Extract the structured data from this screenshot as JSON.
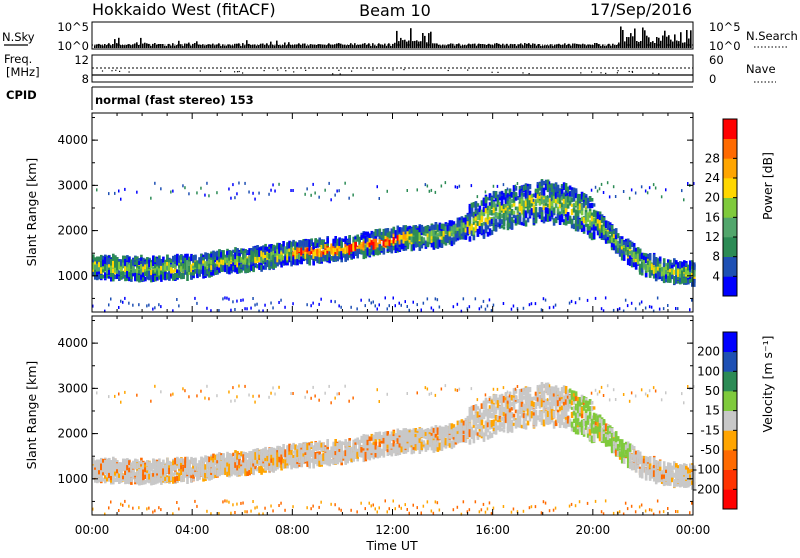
{
  "header": {
    "title": "Hokkaido West (fitACF)",
    "beam": "Beam 10",
    "date": "17/Sep/2016"
  },
  "status": {
    "nsky_label": "N.Sky",
    "nsky_ticks": [
      "10^5",
      "10^0"
    ],
    "nsearch_label": "N.Search",
    "nsearch_ticks": [
      "10^5",
      "10^0"
    ],
    "freq_label_line1": "Freq.",
    "freq_label_line2": "[MHz]",
    "freq_ticks": [
      "12",
      "8"
    ],
    "nave_label": "Nave",
    "nave_ticks": [
      "60",
      "0"
    ],
    "cpid_label": "CPID",
    "cpid_text": "normal (fast stereo) 153"
  },
  "colors": {
    "power_scale": [
      "#0000ff",
      "#1e50b4",
      "#2c8b55",
      "#52a66c",
      "#7fca3c",
      "#ffd700",
      "#ffa500",
      "#ff6a00",
      "#ff0000"
    ],
    "velocity_scale": [
      "#0000ff",
      "#1e50b4",
      "#2c8b55",
      "#7fca3c",
      "#c8c8c8",
      "#ffa500",
      "#ff6a00",
      "#ff3300",
      "#ff0000"
    ]
  },
  "chart_data": [
    {
      "type": "heatmap",
      "name": "power",
      "xlabel": "",
      "ylabel": "Slant Range [km]",
      "yticks": [
        "1000",
        "2000",
        "3000",
        "4000"
      ],
      "ylim": [
        200,
        4600
      ],
      "xlim": [
        0,
        24
      ],
      "colorbar_label": "Power [dB]",
      "colorbar_ticks": [
        "4",
        "8",
        "12",
        "16",
        "20",
        "24",
        "28"
      ],
      "colorbar_range": [
        0,
        32
      ],
      "band": {
        "x": [
          0,
          2,
          4,
          6,
          8,
          10,
          11,
          12,
          13,
          14,
          15,
          16,
          17,
          18,
          19,
          20,
          21,
          22,
          23,
          24
        ],
        "range_center": [
          1200,
          1150,
          1200,
          1350,
          1500,
          1600,
          1700,
          1800,
          1850,
          1900,
          2100,
          2400,
          2550,
          2650,
          2550,
          2250,
          1700,
          1250,
          1100,
          1050
        ]
      }
    },
    {
      "type": "heatmap",
      "name": "velocity",
      "xlabel": "Time UT",
      "ylabel": "Slant Range [km]",
      "xticks": [
        "00:00",
        "04:00",
        "08:00",
        "12:00",
        "16:00",
        "20:00",
        "00:00"
      ],
      "yticks": [
        "1000",
        "2000",
        "3000",
        "4000"
      ],
      "ylim": [
        200,
        4600
      ],
      "xlim": [
        0,
        24
      ],
      "colorbar_label": "Velocity [m s⁻¹]",
      "colorbar_ticks": [
        "200",
        "100",
        "50",
        "15",
        "-15",
        "-50",
        "-100",
        "-200"
      ],
      "colorbar_range": [
        -250,
        250
      ]
    }
  ]
}
